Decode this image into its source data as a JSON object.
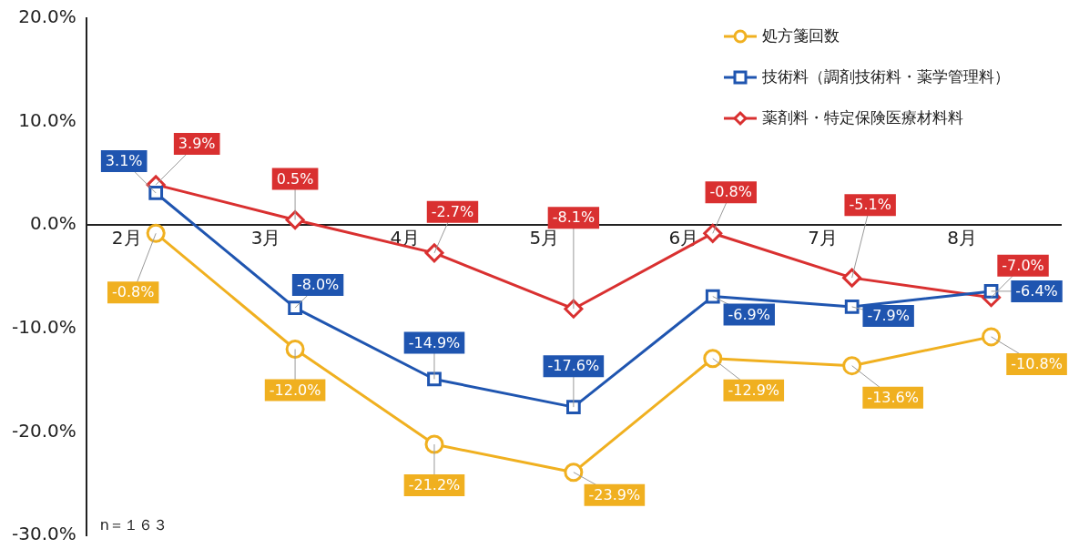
{
  "chart_data": {
    "type": "line",
    "categories": [
      "2月",
      "3月",
      "4月",
      "5月",
      "6月",
      "7月",
      "8月"
    ],
    "series": [
      {
        "name": "処方箋回数",
        "color": "#f0b020",
        "marker": "circle",
        "values": [
          -0.8,
          -12.0,
          -21.2,
          -23.9,
          -12.9,
          -13.6,
          -10.8
        ],
        "value_labels": [
          "-0.8%",
          "-12.0%",
          "-21.2%",
          "-23.9%",
          "-12.9%",
          "-13.6%",
          "-10.8%"
        ]
      },
      {
        "name": "技術料（調剤技術料・薬学管理料）",
        "color": "#1f55b0",
        "marker": "square",
        "values": [
          3.1,
          -8.0,
          -14.9,
          -17.6,
          -6.9,
          -7.9,
          -6.4
        ],
        "value_labels": [
          "3.1%",
          "-8.0%",
          "-14.9%",
          "-17.6%",
          "-6.9%",
          "-7.9%",
          "-6.4%"
        ]
      },
      {
        "name": "薬剤料・特定保険医療材料料",
        "color": "#d93030",
        "marker": "diamond",
        "values": [
          3.9,
          0.5,
          -2.7,
          -8.1,
          -0.8,
          -5.1,
          -7.0
        ],
        "value_labels": [
          "3.9%",
          "0.5%",
          "-2.7%",
          "-8.1%",
          "-0.8%",
          "-5.1%",
          "-7.0%"
        ]
      }
    ],
    "ylim": [
      -30,
      20
    ],
    "yticks": [
      {
        "value": -30,
        "label": "-30.0%"
      },
      {
        "value": -20,
        "label": "-20.0%"
      },
      {
        "value": -10,
        "label": "-10.0%"
      },
      {
        "value": 0,
        "label": "0.0%"
      },
      {
        "value": 10,
        "label": "10.0%"
      },
      {
        "value": 20,
        "label": "20.0%"
      }
    ],
    "grid": false,
    "legend": "top right",
    "line_style": "solid",
    "annotations": [
      "n＝１６３"
    ]
  }
}
